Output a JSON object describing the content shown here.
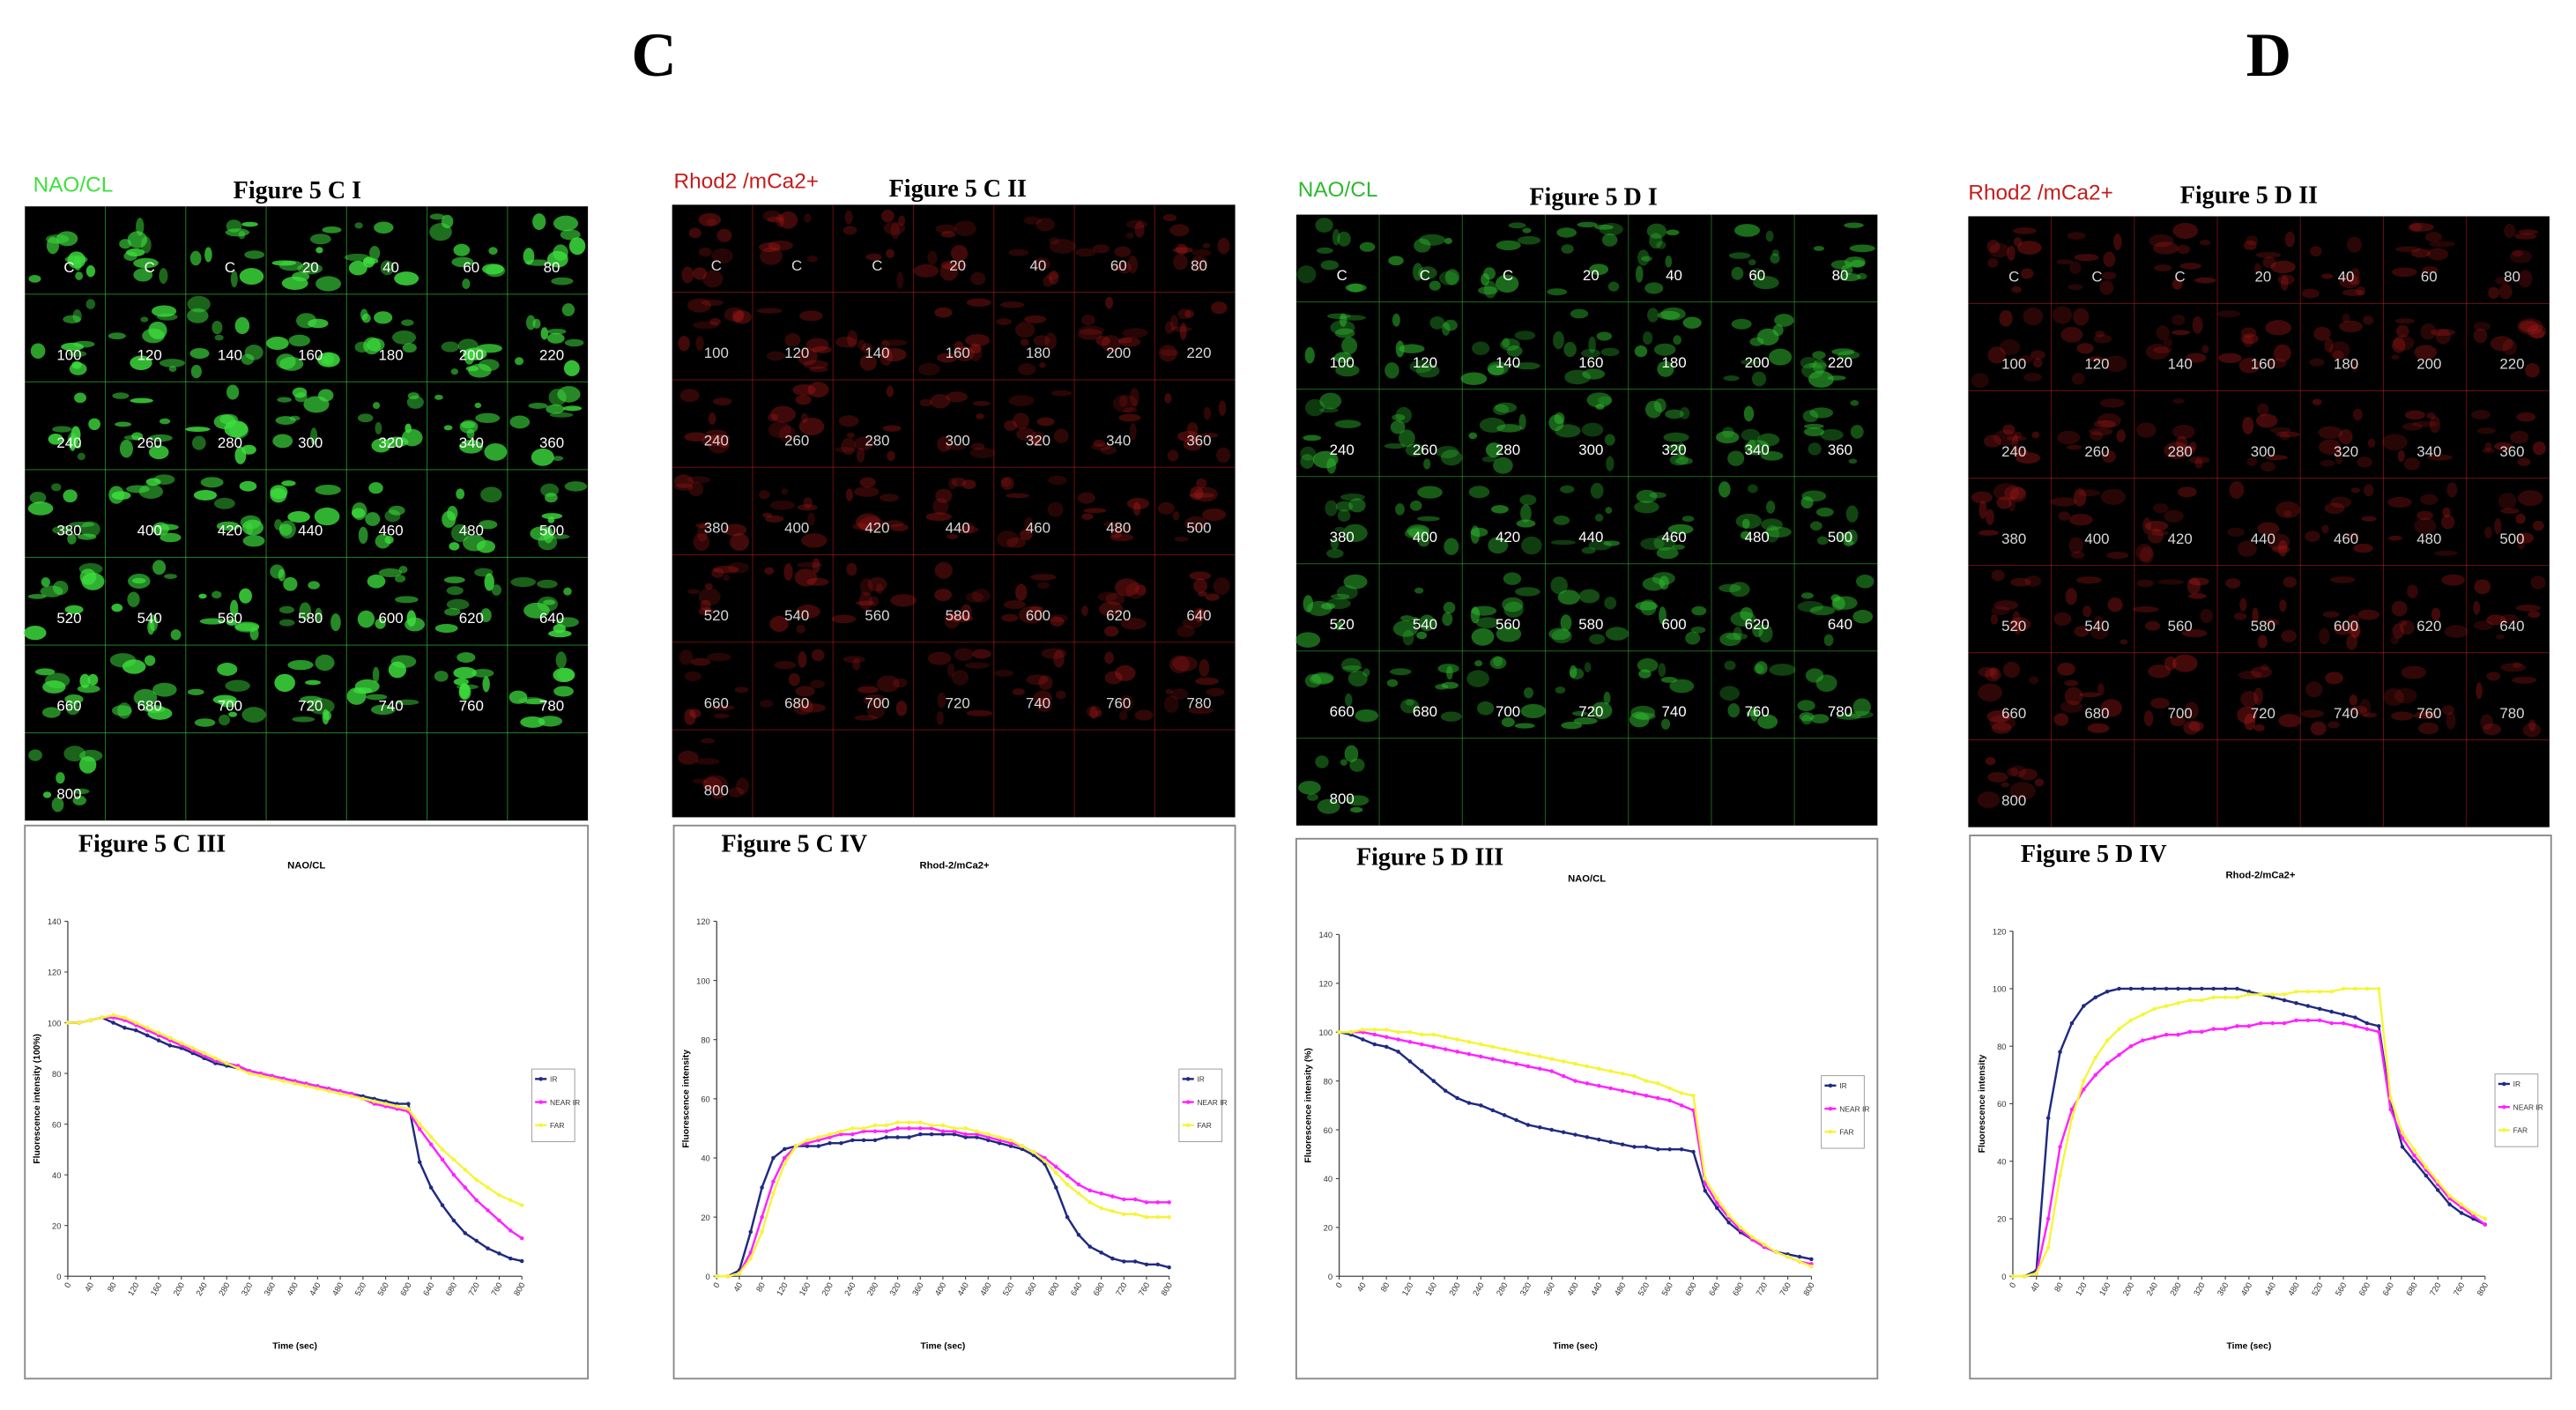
{
  "headers": [
    "C",
    "D"
  ],
  "frame_labels": [
    "C",
    "C",
    "C",
    "20",
    "40",
    "60",
    "80",
    "100",
    "120",
    "140",
    "160",
    "180",
    "200",
    "220",
    "240",
    "260",
    "280",
    "300",
    "320",
    "340",
    "360",
    "380",
    "400",
    "420",
    "440",
    "460",
    "480",
    "500",
    "520",
    "540",
    "560",
    "580",
    "600",
    "620",
    "640",
    "660",
    "680",
    "700",
    "720",
    "740",
    "760",
    "780",
    "800"
  ],
  "panels": [
    {
      "label": "NAO/CL",
      "title": "Figure 5 C I",
      "color": "#3ee03e"
    },
    {
      "label": "Rhod2 /mCa2+",
      "title": "Figure 5 C II",
      "color": "#c41c1c"
    },
    {
      "label": "NAO/CL",
      "title": "Figure 5 D I",
      "color": "#2fb82f"
    },
    {
      "label": "Rhod2 /mCa2+",
      "title": "Figure 5 D II",
      "color": "#c41c1c"
    }
  ],
  "chart_data": [
    {
      "type": "line",
      "panel_title": "Figure 5 C III",
      "title": "NAO/CL",
      "y_label": "Fluorescence intensity (100%)",
      "x_label": "Time (sec)",
      "x": [
        0,
        20,
        40,
        60,
        80,
        100,
        120,
        140,
        160,
        180,
        200,
        220,
        240,
        260,
        280,
        300,
        320,
        340,
        360,
        380,
        400,
        420,
        440,
        460,
        480,
        500,
        520,
        540,
        560,
        580,
        600,
        620,
        640,
        660,
        680,
        700,
        720,
        740,
        760,
        780,
        800
      ],
      "xlim": [
        0,
        800
      ],
      "xticks": [
        0,
        40,
        80,
        120,
        160,
        200,
        240,
        280,
        320,
        360,
        400,
        440,
        480,
        520,
        560,
        600,
        640,
        680,
        720,
        760,
        800
      ],
      "ylim": [
        0,
        140
      ],
      "yticks": [
        0,
        20,
        40,
        60,
        80,
        100,
        120,
        140
      ],
      "series": [
        {
          "name": "IR",
          "color": "#1f2a80",
          "values": [
            100,
            100,
            101,
            102,
            100,
            98,
            97,
            95,
            93,
            91,
            90,
            88,
            86,
            84,
            83,
            82,
            81,
            80,
            79,
            78,
            77,
            76,
            75,
            74,
            73,
            72,
            71,
            70,
            69,
            68,
            68,
            45,
            35,
            28,
            22,
            17,
            14,
            11,
            9,
            7,
            6
          ]
        },
        {
          "name": "NEAR IR",
          "color": "#ff22ff",
          "values": [
            100,
            100,
            101,
            102,
            102,
            101,
            99,
            97,
            95,
            93,
            91,
            89,
            87,
            85,
            84,
            83,
            81,
            80,
            79,
            78,
            77,
            76,
            75,
            74,
            73,
            72,
            70,
            68,
            67,
            66,
            65,
            58,
            52,
            46,
            40,
            35,
            30,
            26,
            22,
            18,
            15
          ]
        },
        {
          "name": "FAR",
          "color": "#f5f53a",
          "values": [
            100,
            100,
            101,
            102,
            103,
            102,
            100,
            98,
            96,
            94,
            92,
            90,
            88,
            86,
            84,
            82,
            80,
            79,
            78,
            77,
            76,
            75,
            74,
            73,
            72,
            71,
            70,
            69,
            68,
            67,
            66,
            60,
            55,
            50,
            46,
            42,
            38,
            35,
            32,
            30,
            28
          ]
        }
      ]
    },
    {
      "type": "line",
      "panel_title": "Figure 5 C IV",
      "title": "Rhod-2/mCa2+",
      "y_label": "Fluorescence intensity",
      "x_label": "Time (sec)",
      "x": [
        0,
        20,
        40,
        60,
        80,
        100,
        120,
        140,
        160,
        180,
        200,
        220,
        240,
        260,
        280,
        300,
        320,
        340,
        360,
        380,
        400,
        420,
        440,
        460,
        480,
        500,
        520,
        540,
        560,
        580,
        600,
        620,
        640,
        660,
        680,
        700,
        720,
        740,
        760,
        780,
        800
      ],
      "xlim": [
        0,
        800
      ],
      "xticks": [
        0,
        40,
        80,
        120,
        160,
        200,
        240,
        280,
        320,
        360,
        400,
        440,
        480,
        520,
        560,
        600,
        640,
        680,
        720,
        760,
        800
      ],
      "ylim": [
        0,
        120
      ],
      "yticks": [
        0,
        20,
        40,
        60,
        80,
        100,
        120
      ],
      "series": [
        {
          "name": "IR",
          "color": "#1f2a80",
          "values": [
            0,
            0,
            2,
            15,
            30,
            40,
            43,
            44,
            44,
            44,
            45,
            45,
            46,
            46,
            46,
            47,
            47,
            47,
            48,
            48,
            48,
            48,
            47,
            47,
            46,
            45,
            44,
            43,
            41,
            38,
            30,
            20,
            14,
            10,
            8,
            6,
            5,
            5,
            4,
            4,
            3
          ]
        },
        {
          "name": "NEAR IR",
          "color": "#ff22ff",
          "values": [
            0,
            0,
            1,
            8,
            20,
            32,
            40,
            44,
            45,
            46,
            47,
            48,
            48,
            49,
            49,
            49,
            50,
            50,
            50,
            50,
            49,
            49,
            48,
            48,
            47,
            46,
            45,
            44,
            42,
            40,
            37,
            34,
            31,
            29,
            28,
            27,
            26,
            26,
            25,
            25,
            25
          ]
        },
        {
          "name": "FAR",
          "color": "#f5f53a",
          "values": [
            0,
            0,
            1,
            6,
            15,
            28,
            38,
            44,
            46,
            47,
            48,
            49,
            50,
            50,
            51,
            51,
            52,
            52,
            52,
            51,
            51,
            50,
            50,
            49,
            48,
            47,
            46,
            44,
            42,
            39,
            35,
            31,
            28,
            25,
            23,
            22,
            21,
            21,
            20,
            20,
            20
          ]
        }
      ]
    },
    {
      "type": "line",
      "panel_title": "Figure 5 D III",
      "title": "NAO/CL",
      "y_label": "Fluorescence intensity (%)",
      "x_label": "Time (sec)",
      "x": [
        0,
        20,
        40,
        60,
        80,
        100,
        120,
        140,
        160,
        180,
        200,
        220,
        240,
        260,
        280,
        300,
        320,
        340,
        360,
        380,
        400,
        420,
        440,
        460,
        480,
        500,
        520,
        540,
        560,
        580,
        600,
        620,
        640,
        660,
        680,
        700,
        720,
        740,
        760,
        780,
        800
      ],
      "xlim": [
        0,
        800
      ],
      "xticks": [
        0,
        40,
        80,
        120,
        160,
        200,
        240,
        280,
        320,
        360,
        400,
        440,
        480,
        520,
        560,
        600,
        640,
        680,
        720,
        760,
        800
      ],
      "ylim": [
        0,
        140
      ],
      "yticks": [
        0,
        20,
        40,
        60,
        80,
        100,
        120,
        140
      ],
      "series": [
        {
          "name": "IR",
          "color": "#1f2a80",
          "values": [
            100,
            99,
            97,
            95,
            94,
            92,
            88,
            84,
            80,
            76,
            73,
            71,
            70,
            68,
            66,
            64,
            62,
            61,
            60,
            59,
            58,
            57,
            56,
            55,
            54,
            53,
            53,
            52,
            52,
            52,
            51,
            35,
            28,
            22,
            18,
            15,
            12,
            10,
            9,
            8,
            7
          ]
        },
        {
          "name": "NEAR IR",
          "color": "#ff22ff",
          "values": [
            100,
            100,
            100,
            99,
            98,
            97,
            96,
            95,
            94,
            93,
            92,
            91,
            90,
            89,
            88,
            87,
            86,
            85,
            84,
            82,
            80,
            79,
            78,
            77,
            76,
            75,
            74,
            73,
            72,
            70,
            68,
            38,
            30,
            24,
            19,
            15,
            12,
            10,
            8,
            6,
            5
          ]
        },
        {
          "name": "FAR",
          "color": "#f5f53a",
          "values": [
            100,
            100,
            101,
            101,
            101,
            100,
            100,
            99,
            99,
            98,
            97,
            96,
            95,
            94,
            93,
            92,
            91,
            90,
            89,
            88,
            87,
            86,
            85,
            84,
            83,
            82,
            80,
            79,
            77,
            75,
            74,
            40,
            32,
            25,
            20,
            16,
            13,
            10,
            8,
            6,
            4
          ]
        }
      ]
    },
    {
      "type": "line",
      "panel_title": "Figure 5 D IV",
      "title": "Rhod-2/mCa2+",
      "y_label": "Fluorescence intensity",
      "x_label": "Time (sec)",
      "x": [
        0,
        20,
        40,
        60,
        80,
        100,
        120,
        140,
        160,
        180,
        200,
        220,
        240,
        260,
        280,
        300,
        320,
        340,
        360,
        380,
        400,
        420,
        440,
        460,
        480,
        500,
        520,
        540,
        560,
        580,
        600,
        620,
        640,
        660,
        680,
        700,
        720,
        740,
        760,
        780,
        800
      ],
      "xlim": [
        0,
        800
      ],
      "xticks": [
        0,
        40,
        80,
        120,
        160,
        200,
        240,
        280,
        320,
        360,
        400,
        440,
        480,
        520,
        560,
        600,
        640,
        680,
        720,
        760,
        800
      ],
      "ylim": [
        0,
        120
      ],
      "yticks": [
        0,
        20,
        40,
        60,
        80,
        100,
        120
      ],
      "series": [
        {
          "name": "IR",
          "color": "#1f2a80",
          "values": [
            0,
            0,
            2,
            55,
            78,
            88,
            94,
            97,
            99,
            100,
            100,
            100,
            100,
            100,
            100,
            100,
            100,
            100,
            100,
            100,
            99,
            98,
            97,
            96,
            95,
            94,
            93,
            92,
            91,
            90,
            88,
            87,
            60,
            45,
            40,
            35,
            30,
            25,
            22,
            20,
            18
          ]
        },
        {
          "name": "NEAR IR",
          "color": "#ff22ff",
          "values": [
            0,
            0,
            1,
            20,
            45,
            58,
            65,
            70,
            74,
            77,
            80,
            82,
            83,
            84,
            84,
            85,
            85,
            86,
            86,
            87,
            87,
            88,
            88,
            88,
            89,
            89,
            89,
            88,
            88,
            87,
            86,
            85,
            58,
            48,
            42,
            37,
            32,
            27,
            24,
            21,
            18
          ]
        },
        {
          "name": "FAR",
          "color": "#f5f53a",
          "values": [
            0,
            0,
            1,
            10,
            35,
            55,
            68,
            76,
            82,
            86,
            89,
            91,
            93,
            94,
            95,
            96,
            96,
            97,
            97,
            97,
            98,
            98,
            98,
            98,
            99,
            99,
            99,
            99,
            100,
            100,
            100,
            100,
            62,
            50,
            44,
            38,
            33,
            28,
            25,
            22,
            20
          ]
        }
      ]
    }
  ]
}
